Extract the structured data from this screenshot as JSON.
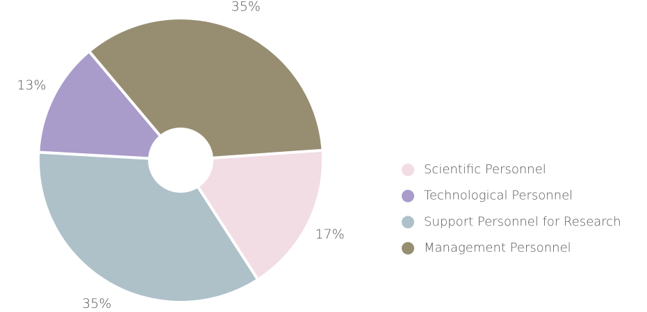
{
  "chart_data": {
    "type": "pie",
    "categories": [
      "Scientific Personnel",
      "Technological Personnel",
      "Support Personnel for Research",
      "Management Personnel"
    ],
    "values": [
      17,
      13,
      35,
      35
    ],
    "value_labels": [
      "17%",
      "13%",
      "35%",
      "35%"
    ],
    "colors": [
      "#f2dde4",
      "#a99bca",
      "#aec1c9",
      "#978e72"
    ],
    "legend": "right"
  }
}
